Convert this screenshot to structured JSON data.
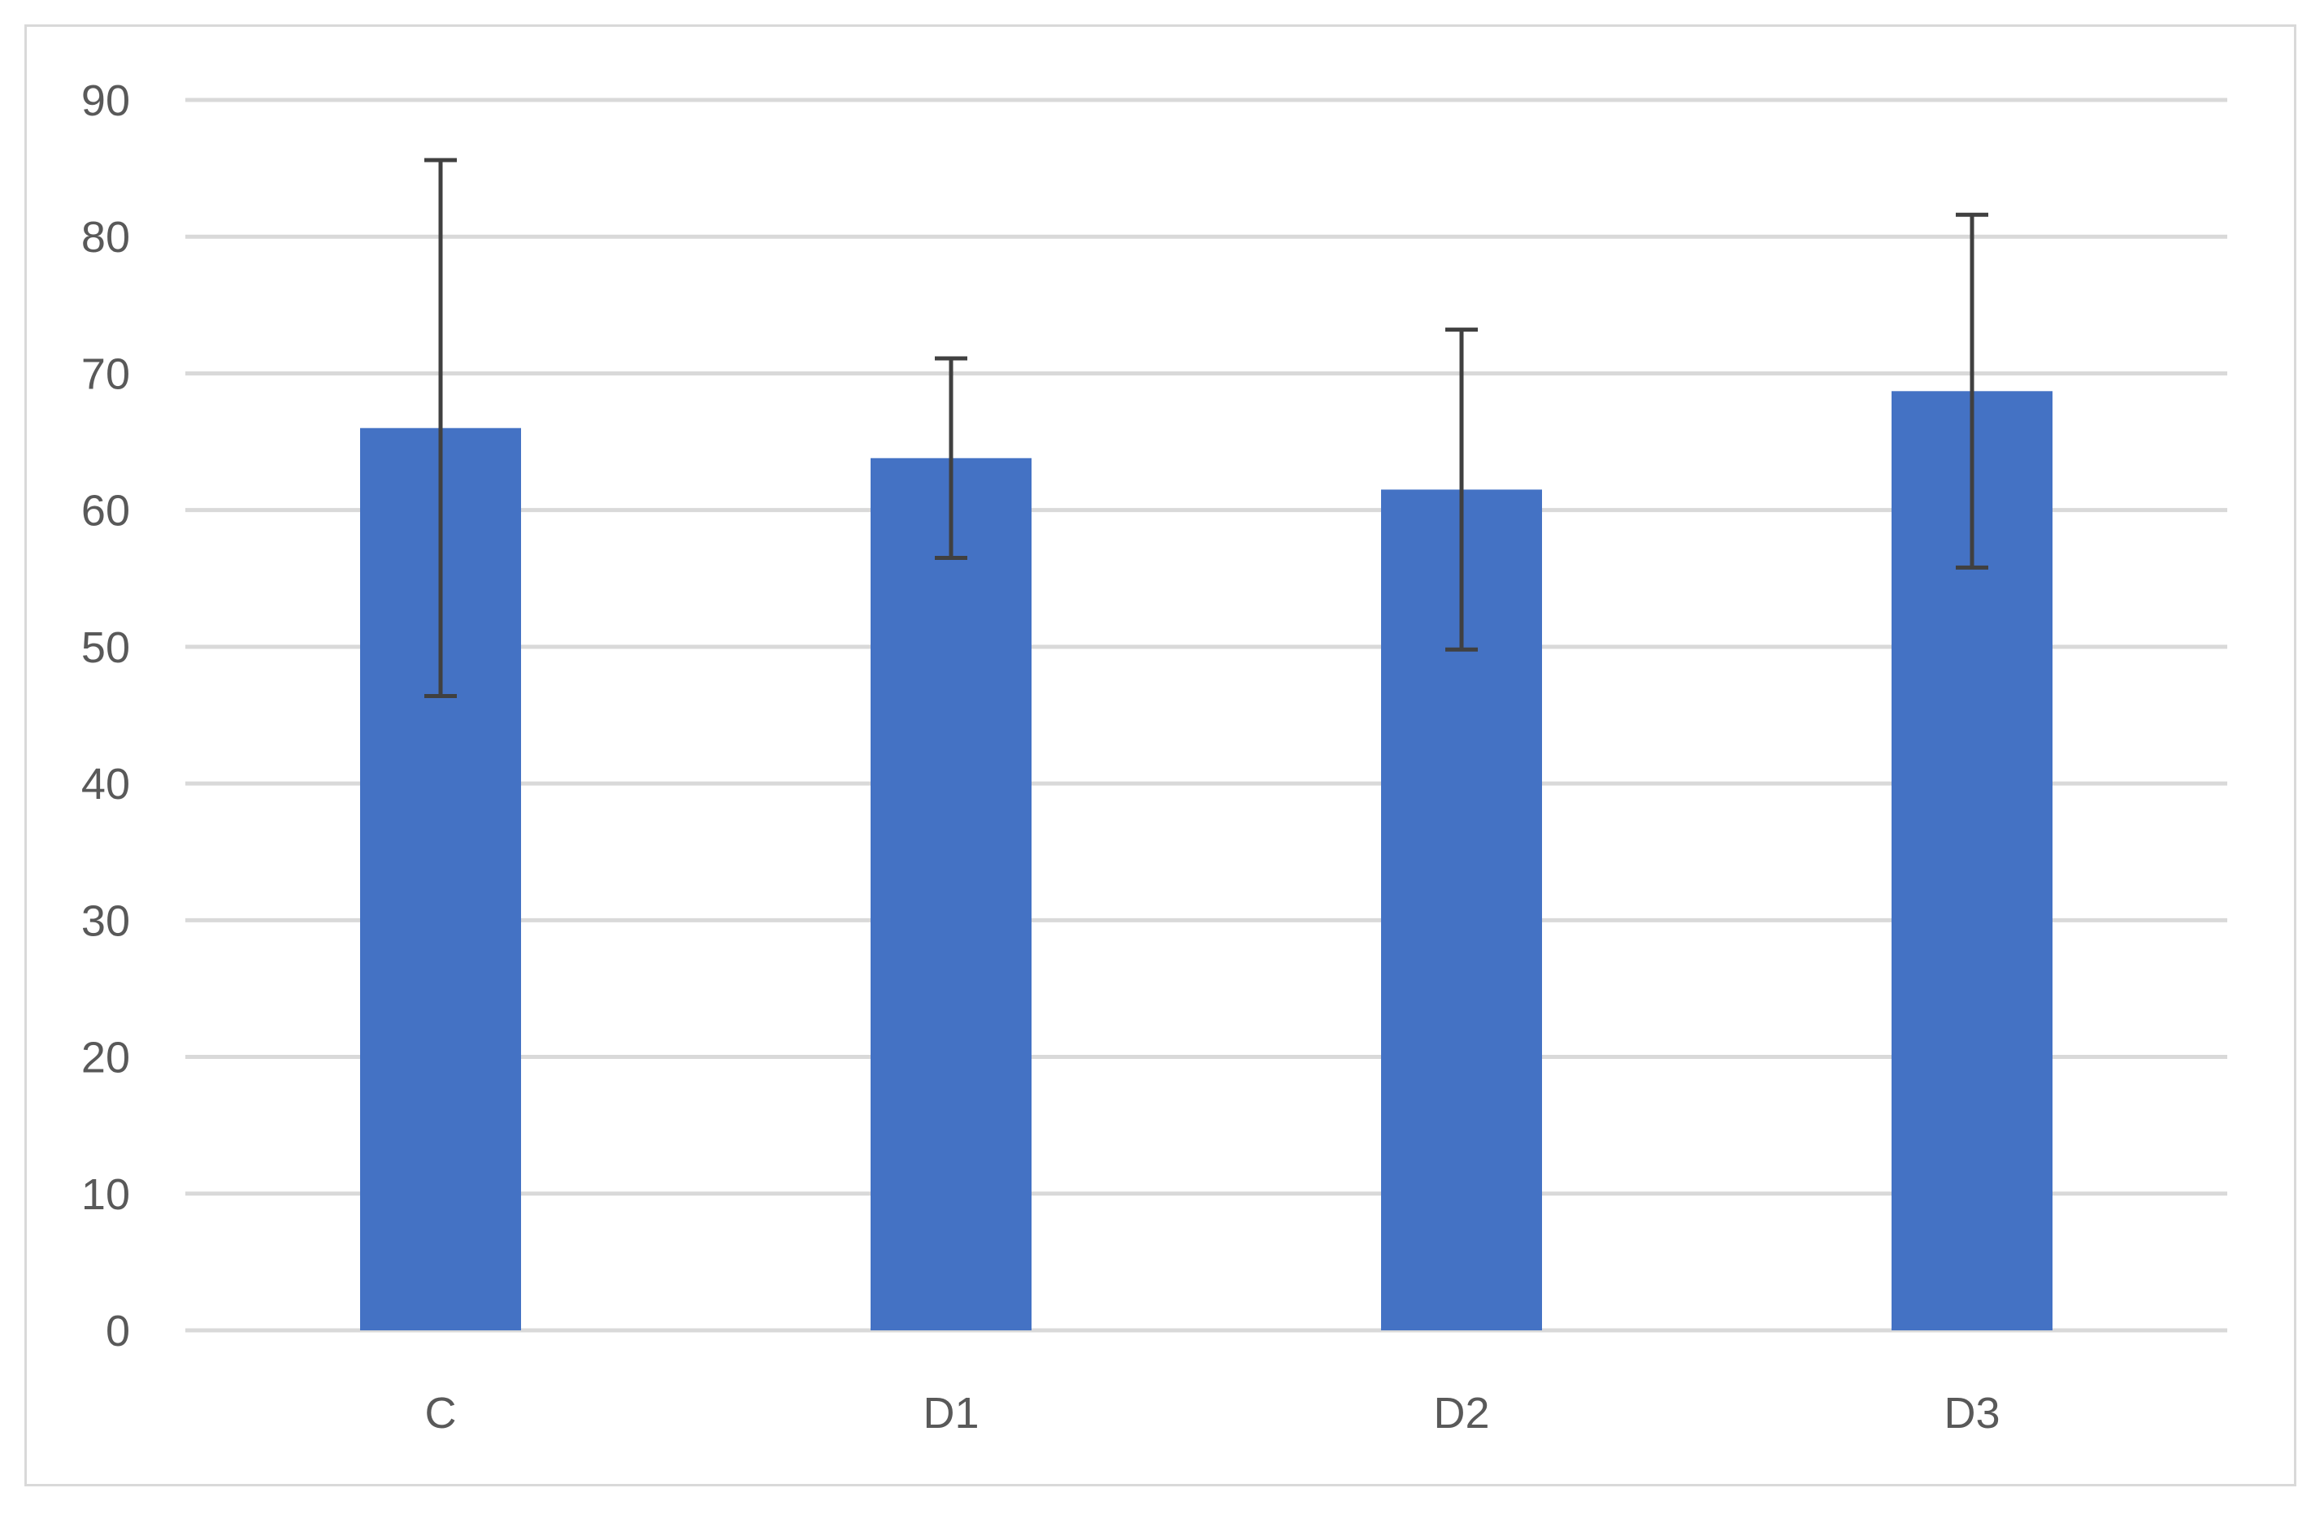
{
  "chart_data": {
    "type": "bar",
    "title": "",
    "xlabel": "",
    "ylabel": "",
    "categories": [
      "C",
      "D1",
      "D2",
      "D3"
    ],
    "values": [
      66,
      63.8,
      61.5,
      68.7
    ],
    "error_plus_minus": [
      19.6,
      7.3,
      11.7,
      12.9
    ],
    "ylim": [
      0,
      90
    ],
    "yticks": [
      "0",
      "10",
      "20",
      "30",
      "40",
      "50",
      "60",
      "70",
      "80",
      "90"
    ],
    "grid": true,
    "legend": "none",
    "bar_color": "#4472c4",
    "error_bar_color": "#404040",
    "grid_color": "#d9d9d9",
    "tick_label_color": "#595959"
  }
}
